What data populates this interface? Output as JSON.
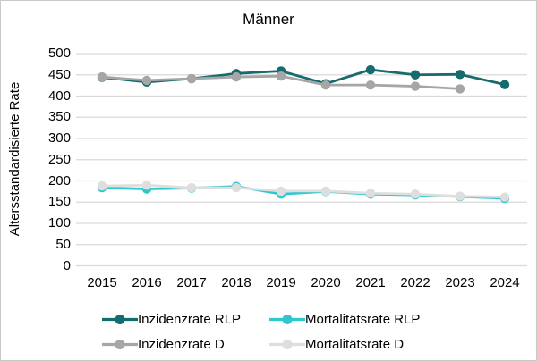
{
  "chart_data": {
    "type": "line",
    "title": "Männer",
    "ylabel": "Altersstandardisierte Rate",
    "xlabel": "",
    "ylim": [
      0,
      500
    ],
    "yticks": [
      0,
      50,
      100,
      150,
      200,
      250,
      300,
      350,
      400,
      450,
      500
    ],
    "grid": "horizontal-only",
    "gridline_color": "#d9d9d9",
    "legend_position": "bottom",
    "categories": [
      "2015",
      "2016",
      "2017",
      "2018",
      "2019",
      "2020",
      "2021",
      "2022",
      "2023",
      "2024"
    ],
    "series": [
      {
        "name": "Inzidenzrate RLP",
        "color": "#156b6d",
        "values": [
          444,
          433,
          441,
          453,
          459,
          429,
          462,
          450,
          451,
          427
        ]
      },
      {
        "name": "Mortalitätsrate RLP",
        "color": "#2fc7ce",
        "values": [
          184,
          181,
          183,
          187,
          169,
          175,
          169,
          167,
          163,
          159
        ]
      },
      {
        "name": "Inzidenzrate D",
        "color": "#a6a6a6",
        "values": [
          445,
          437,
          441,
          445,
          447,
          426,
          426,
          423,
          417,
          null
        ]
      },
      {
        "name": "Mortalitätsrate D",
        "color": "#dedede",
        "values": [
          188,
          190,
          184,
          184,
          176,
          176,
          171,
          169,
          164,
          162
        ]
      }
    ]
  }
}
